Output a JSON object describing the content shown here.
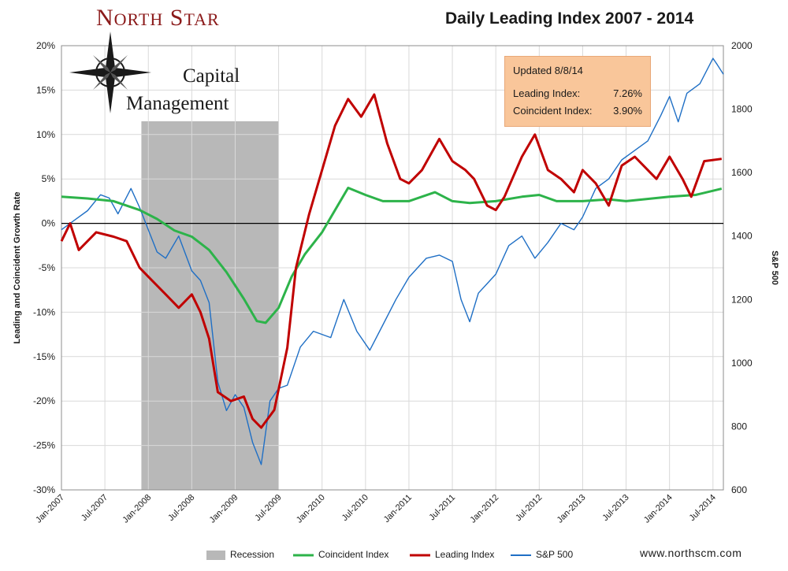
{
  "logo": {
    "name_first": "N",
    "name_first_rest": "ORTH",
    "name_second": "S",
    "name_second_rest": "TAR",
    "line2": "Capital",
    "line3": "Management"
  },
  "title": "Daily Leading Index 2007 - 2014",
  "update_box": {
    "updated": "Updated 8/8/14",
    "leading_label": "Leading Index:",
    "leading_value": "7.26%",
    "coincident_label": "Coincident Index:",
    "coincident_value": "3.90%"
  },
  "website": "www.northscm.com",
  "colors": {
    "recession": "#b8b8b8",
    "coincident": "#2db34a",
    "leading": "#c00000",
    "sp500": "#1f6fc5",
    "update_box": "#f9c69a"
  },
  "chart_data": {
    "type": "line",
    "title": "Daily Leading Index 2007 - 2014",
    "ylabel": "Leading and Coincident Growth Rate",
    "y2label": "S&P 500",
    "ylim": [
      -30,
      20
    ],
    "y2lim": [
      600,
      2000
    ],
    "y_ticks": [
      "20%",
      "15%",
      "10%",
      "5%",
      "0%",
      "-5%",
      "-10%",
      "-15%",
      "-20%",
      "-25%",
      "-30%"
    ],
    "y2_ticks": [
      "2000",
      "1800",
      "1600",
      "1400",
      "1200",
      "1000",
      "800",
      "600"
    ],
    "x_ticks": [
      "Jan-2007",
      "Jul-2007",
      "Jan-2008",
      "Jul-2008",
      "Jan-2009",
      "Jul-2009",
      "Jan-2010",
      "Jul-2010",
      "Jan-2011",
      "Jul-2011",
      "Jan-2012",
      "Jul-2012",
      "Jan-2013",
      "Jul-2013",
      "Jan-2014",
      "Jul-2014"
    ],
    "x_unit": "years (decimal)",
    "xlim": [
      2007.0,
      2014.62
    ],
    "recession": {
      "name": "Recession",
      "start": 2007.92,
      "end": 2009.5
    },
    "series": [
      {
        "name": "Coincident Index",
        "axis": "left",
        "x": [
          2007.0,
          2007.3,
          2007.6,
          2007.9,
          2008.1,
          2008.3,
          2008.5,
          2008.7,
          2008.9,
          2009.1,
          2009.25,
          2009.35,
          2009.5,
          2009.65,
          2009.8,
          2010.0,
          2010.15,
          2010.3,
          2010.5,
          2010.7,
          2011.0,
          2011.3,
          2011.5,
          2011.7,
          2012.0,
          2012.3,
          2012.5,
          2012.7,
          2013.0,
          2013.3,
          2013.5,
          2013.7,
          2014.0,
          2014.3,
          2014.6
        ],
        "values": [
          3.0,
          2.8,
          2.5,
          1.5,
          0.5,
          -0.8,
          -1.5,
          -3.0,
          -5.5,
          -8.5,
          -11.0,
          -11.2,
          -9.5,
          -6.0,
          -3.5,
          -1.0,
          1.5,
          4.0,
          3.2,
          2.5,
          2.5,
          3.5,
          2.5,
          2.3,
          2.5,
          3.0,
          3.2,
          2.5,
          2.5,
          2.7,
          2.5,
          2.7,
          3.0,
          3.2,
          3.9
        ]
      },
      {
        "name": "Leading Index",
        "axis": "left",
        "x": [
          2007.0,
          2007.1,
          2007.2,
          2007.4,
          2007.6,
          2007.75,
          2007.9,
          2008.0,
          2008.2,
          2008.35,
          2008.5,
          2008.6,
          2008.7,
          2008.8,
          2008.95,
          2009.1,
          2009.2,
          2009.3,
          2009.45,
          2009.6,
          2009.7,
          2009.85,
          2010.0,
          2010.15,
          2010.3,
          2010.45,
          2010.6,
          2010.75,
          2010.9,
          2011.0,
          2011.15,
          2011.35,
          2011.5,
          2011.65,
          2011.75,
          2011.9,
          2012.0,
          2012.1,
          2012.3,
          2012.45,
          2012.6,
          2012.75,
          2012.9,
          2013.0,
          2013.15,
          2013.3,
          2013.45,
          2013.6,
          2013.75,
          2013.85,
          2014.0,
          2014.15,
          2014.25,
          2014.4,
          2014.6
        ],
        "values": [
          -2.0,
          0.0,
          -3.0,
          -1.0,
          -1.5,
          -2.0,
          -5.0,
          -6.0,
          -8.0,
          -9.5,
          -8.0,
          -10.0,
          -13.0,
          -19.0,
          -20.0,
          -19.5,
          -22.0,
          -23.0,
          -21.0,
          -14.0,
          -5.0,
          1.0,
          6.0,
          11.0,
          14.0,
          12.0,
          14.5,
          9.0,
          5.0,
          4.5,
          6.0,
          9.5,
          7.0,
          6.0,
          5.0,
          2.0,
          1.5,
          3.0,
          7.5,
          10.0,
          6.0,
          5.0,
          3.5,
          6.0,
          4.5,
          2.0,
          6.5,
          7.5,
          6.0,
          5.0,
          7.5,
          5.0,
          3.0,
          7.0,
          7.26
        ]
      },
      {
        "name": "S&P 500",
        "axis": "right",
        "x": [
          2007.0,
          2007.15,
          2007.3,
          2007.45,
          2007.55,
          2007.65,
          2007.8,
          2007.9,
          2008.0,
          2008.1,
          2008.2,
          2008.35,
          2008.5,
          2008.6,
          2008.7,
          2008.8,
          2008.9,
          2009.0,
          2009.1,
          2009.2,
          2009.3,
          2009.4,
          2009.5,
          2009.6,
          2009.75,
          2009.9,
          2010.1,
          2010.25,
          2010.4,
          2010.55,
          2010.7,
          2010.85,
          2011.0,
          2011.2,
          2011.35,
          2011.5,
          2011.6,
          2011.7,
          2011.8,
          2011.9,
          2012.0,
          2012.15,
          2012.3,
          2012.45,
          2012.6,
          2012.75,
          2012.9,
          2013.0,
          2013.15,
          2013.3,
          2013.45,
          2013.6,
          2013.75,
          2013.9,
          2014.0,
          2014.1,
          2014.2,
          2014.35,
          2014.5,
          2014.55,
          2014.62
        ],
        "values": [
          1420,
          1450,
          1480,
          1530,
          1520,
          1470,
          1550,
          1490,
          1420,
          1350,
          1330,
          1400,
          1290,
          1260,
          1190,
          940,
          850,
          900,
          860,
          750,
          680,
          880,
          920,
          930,
          1050,
          1100,
          1080,
          1200,
          1100,
          1040,
          1120,
          1200,
          1270,
          1330,
          1340,
          1320,
          1200,
          1130,
          1220,
          1250,
          1280,
          1370,
          1400,
          1330,
          1380,
          1440,
          1420,
          1460,
          1550,
          1580,
          1640,
          1670,
          1700,
          1780,
          1840,
          1760,
          1850,
          1880,
          1960,
          1940,
          1910
        ]
      }
    ]
  }
}
